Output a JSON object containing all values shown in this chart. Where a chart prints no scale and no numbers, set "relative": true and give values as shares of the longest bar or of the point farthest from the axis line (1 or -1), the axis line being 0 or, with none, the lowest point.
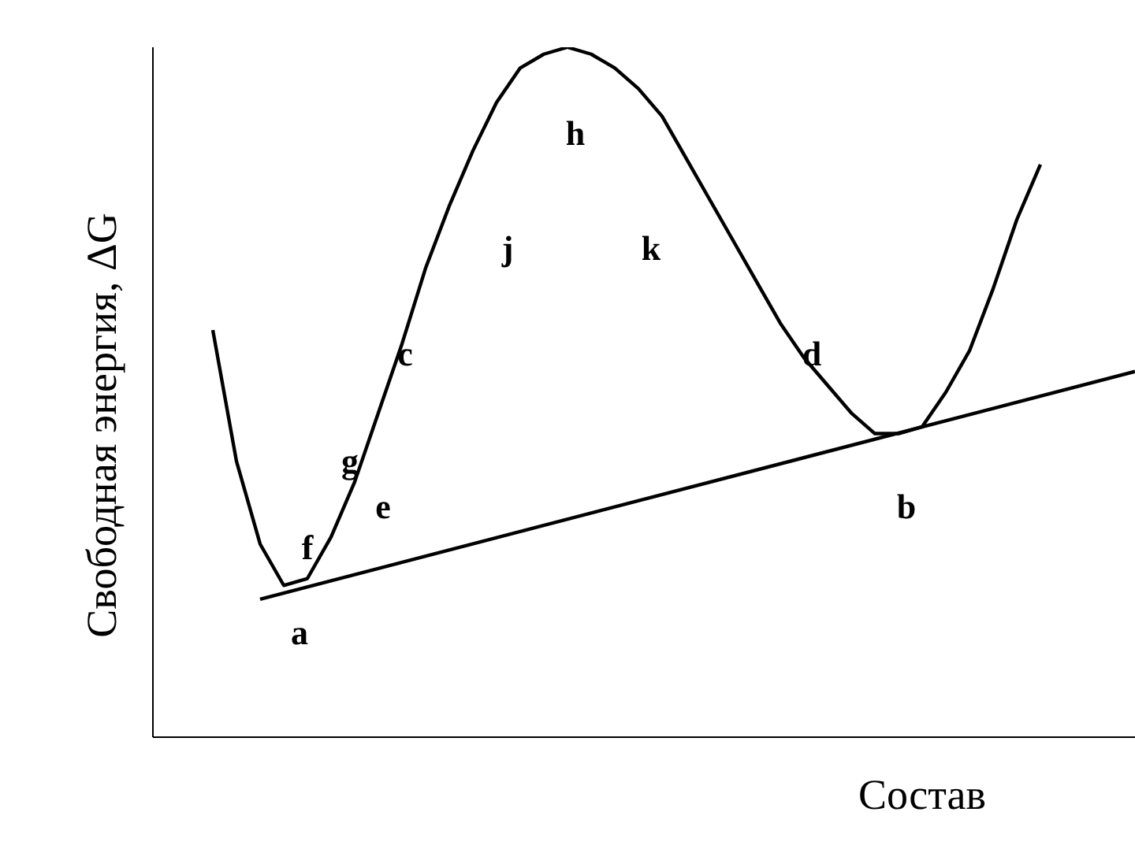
{
  "chart_data": {
    "type": "line",
    "relative": true,
    "xlabel": "Состав",
    "ylabel": "Свободная энергия, ΔG",
    "categories": [
      null,
      null,
      null,
      null,
      null,
      null,
      null,
      null,
      null,
      null,
      null,
      null,
      null,
      null,
      null,
      null,
      null,
      null,
      null,
      null,
      null,
      null,
      null,
      null,
      null,
      null,
      null,
      null,
      null,
      null,
      null,
      null,
      null,
      null,
      null,
      null,
      null,
      null,
      null,
      null
    ],
    "series": [
      {
        "color": "#000000",
        "values": [
          0.59,
          0.4,
          0.28,
          0.22,
          0.23,
          0.29,
          0.37,
          0.47,
          0.57,
          0.68,
          0.77,
          0.85,
          0.92,
          0.97,
          0.99,
          1,
          0.99,
          0.97,
          0.94,
          0.9,
          0.84,
          0.78,
          0.72,
          0.66,
          0.6,
          0.55,
          0.51,
          0.47,
          0.44,
          0.44,
          0.45,
          0.5,
          0.56,
          0.65,
          0.75,
          0.83,
          null,
          null,
          null,
          null
        ]
      },
      {
        "color": "#000000",
        "values": [
          null,
          null,
          0.2,
          null,
          null,
          null,
          null,
          null,
          null,
          null,
          null,
          null,
          null,
          null,
          null,
          null,
          null,
          null,
          null,
          null,
          null,
          null,
          null,
          null,
          null,
          null,
          null,
          null,
          null,
          null,
          null,
          null,
          null,
          null,
          null,
          null,
          null,
          null,
          null,
          0.53
        ]
      }
    ],
    "annotations": [
      "h",
      "j",
      "k",
      "c",
      "d",
      "g",
      "e",
      "f",
      "a",
      "b"
    ],
    "legend": false,
    "grid": false,
    "marker": "none",
    "line_style": "solid"
  }
}
